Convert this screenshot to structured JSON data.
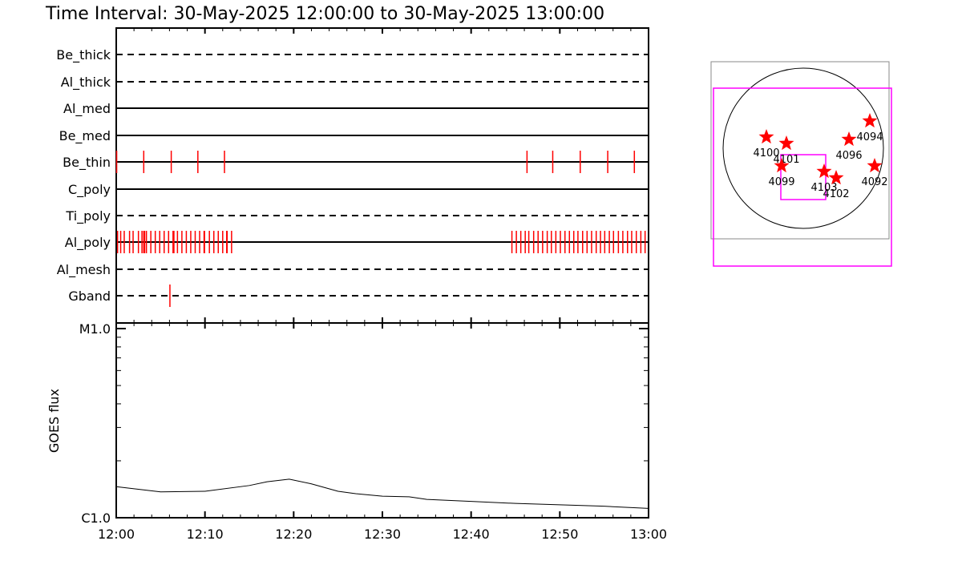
{
  "title": "Time Interval: 30-May-2025 12:00:00 to 30-May-2025 13:00:00",
  "chart_data": [
    {
      "type": "scatter",
      "description_kind": "filter timeline",
      "x_range_minutes": [
        0,
        60
      ],
      "x_tick_labels": [
        "12:00",
        "12:10",
        "12:20",
        "12:30",
        "12:40",
        "12:50",
        "13:00"
      ],
      "rows": [
        {
          "name": "Be_thick",
          "line": "dashed",
          "events": []
        },
        {
          "name": "Al_thick",
          "line": "dashed",
          "events": []
        },
        {
          "name": "Al_med",
          "line": "solid",
          "events": []
        },
        {
          "name": "Be_med",
          "line": "solid",
          "events": []
        },
        {
          "name": "Be_thin",
          "line": "solid",
          "events": [
            0.05,
            3.1,
            6.2,
            9.2,
            12.2,
            46.3,
            49.2,
            52.3,
            55.4,
            58.4
          ]
        },
        {
          "name": "C_poly",
          "line": "solid",
          "events": []
        },
        {
          "name": "Ti_poly",
          "line": "dashed",
          "events": []
        },
        {
          "name": "Al_poly",
          "line": "solid",
          "events": [
            0.15,
            0.5,
            0.9,
            1.5,
            1.9,
            2.5,
            2.9,
            3.1,
            3.2,
            3.4,
            3.9,
            4.4,
            4.9,
            5.4,
            5.9,
            6.4,
            6.5,
            6.9,
            7.4,
            7.9,
            8.4,
            8.9,
            9.4,
            9.9,
            9.95,
            10.5,
            11.0,
            11.5,
            12.0,
            12.45,
            12.5,
            13.0,
            44.6,
            45.1,
            45.6,
            46.1,
            46.5,
            47.05,
            47.55,
            48.06,
            48.58,
            49.05,
            49.55,
            50.06,
            50.58,
            51.08,
            51.57,
            52.04,
            52.57,
            53.07,
            53.58,
            54.1,
            54.58,
            55.06,
            55.58,
            56.05,
            56.6,
            57.1,
            57.63,
            58.1,
            58.62,
            59.13,
            59.61
          ]
        },
        {
          "name": "Al_mesh",
          "line": "dashed",
          "events": []
        },
        {
          "name": "Gband",
          "line": "dashed",
          "events": [
            6.05
          ]
        }
      ],
      "event_color": "#ff0000"
    },
    {
      "type": "line",
      "ylabel": "GOES flux",
      "y_scale": "log",
      "ylim": [
        1e-06,
        1e-05
      ],
      "y_tick_labels": [
        "C1.0",
        "M1.0"
      ],
      "x_tick_labels": [
        "12:00",
        "12:10",
        "12:20",
        "12:30",
        "12:40",
        "12:50",
        "13:00"
      ],
      "x_minutes": [
        0,
        5,
        10,
        15,
        17,
        19.5,
        22,
        25,
        27,
        30,
        33,
        35,
        40,
        45,
        50,
        55,
        60
      ],
      "y": [
        1.46e-06,
        1.37e-06,
        1.38e-06,
        1.48e-06,
        1.55e-06,
        1.6e-06,
        1.51e-06,
        1.38e-06,
        1.34e-06,
        1.3e-06,
        1.29e-06,
        1.25e-06,
        1.22e-06,
        1.19e-06,
        1.17e-06,
        1.15e-06,
        1.12e-06
      ]
    }
  ],
  "context_map": {
    "regions": [
      "4100",
      "4101",
      "4099",
      "4103",
      "4102",
      "4096",
      "4094",
      "4092"
    ],
    "star_color": "#ff0000",
    "fov_color": "#ff00ff",
    "outer_box_color": "#888888"
  }
}
